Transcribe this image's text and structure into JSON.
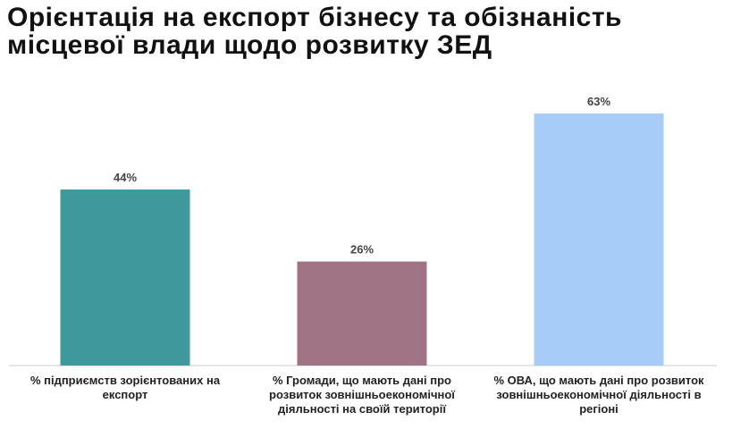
{
  "chart_data": {
    "type": "bar",
    "title": "Орієнтація на експорт бізнесу та обізнаність місцевої влади щодо розвитку ЗЕД",
    "categories": [
      "% підприємств зорієнтованих на експорт",
      "% Громади, що мають дані про розвиток зовнішньоекономічної діяльності на своїй території",
      "% ОВА, що мають дані про розвиток зовнішньоекономічної діяльності в регіоні"
    ],
    "values": [
      44,
      26,
      63
    ],
    "value_labels": [
      "44%",
      "26%",
      "63%"
    ],
    "colors": [
      "#3e9a9a",
      "#a07384",
      "#a7cdf7"
    ]
  }
}
